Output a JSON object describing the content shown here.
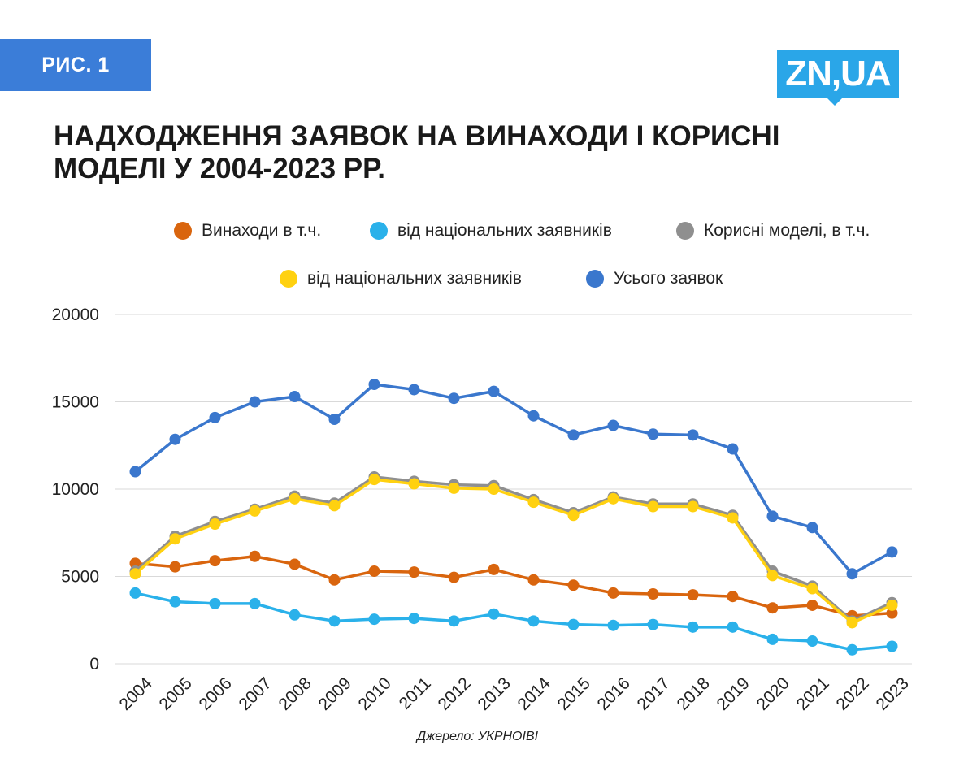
{
  "figure_label": "РИС. 1",
  "logo_text": "ZN,UA",
  "title": "НАДХОДЖЕННЯ ЗАЯВОК НА ВИНАХОДИ І КОРИСНІ МОДЕЛІ У 2004-2023 РР.",
  "source": "Джерело: УКРНОІВІ",
  "chart_data": {
    "type": "line",
    "x": [
      "2004",
      "2005",
      "2006",
      "2007",
      "2008",
      "2009",
      "2010",
      "2011",
      "2012",
      "2013",
      "2014",
      "2015",
      "2016",
      "2017",
      "2018",
      "2019",
      "2020",
      "2021",
      "2022",
      "2023"
    ],
    "yticks": [
      "0",
      "5000",
      "10000",
      "15000",
      "20000"
    ],
    "ylim": [
      0,
      20000
    ],
    "grid": "horizontal",
    "legend_position": "top",
    "series": [
      {
        "name": "Винаходи в т.ч.",
        "color": "#d9650e",
        "values": [
          5750,
          5550,
          5900,
          6150,
          5700,
          4800,
          5300,
          5250,
          4950,
          5400,
          4800,
          4500,
          4050,
          4000,
          3950,
          3850,
          3200,
          3350,
          2750,
          2900
        ]
      },
      {
        "name": "від національних заявників",
        "color": "#2ab1ea",
        "values": [
          4050,
          3550,
          3450,
          3450,
          2800,
          2450,
          2550,
          2600,
          2450,
          2850,
          2450,
          2250,
          2200,
          2250,
          2100,
          2100,
          1400,
          1300,
          800,
          1000
        ]
      },
      {
        "name": "Корисні моделі, в т.ч.",
        "color": "#8f8f8f",
        "values": [
          5300,
          7300,
          8150,
          8850,
          9600,
          9200,
          10700,
          10450,
          10250,
          10200,
          9400,
          8650,
          9550,
          9150,
          9150,
          8500,
          5300,
          4450,
          2450,
          3500
        ]
      },
      {
        "name": "від національних заявників",
        "color": "#ffd110",
        "values": [
          5150,
          7150,
          8000,
          8750,
          9450,
          9050,
          10550,
          10300,
          10050,
          10000,
          9250,
          8500,
          9450,
          9000,
          9000,
          8350,
          5050,
          4300,
          2350,
          3350
        ]
      },
      {
        "name": "Усього заявок",
        "color": "#3a77cd",
        "values": [
          11000,
          12850,
          14100,
          15000,
          15300,
          14000,
          16000,
          15700,
          15200,
          15600,
          14200,
          13100,
          13650,
          13150,
          13100,
          12300,
          8450,
          7800,
          5150,
          6400
        ]
      }
    ]
  }
}
